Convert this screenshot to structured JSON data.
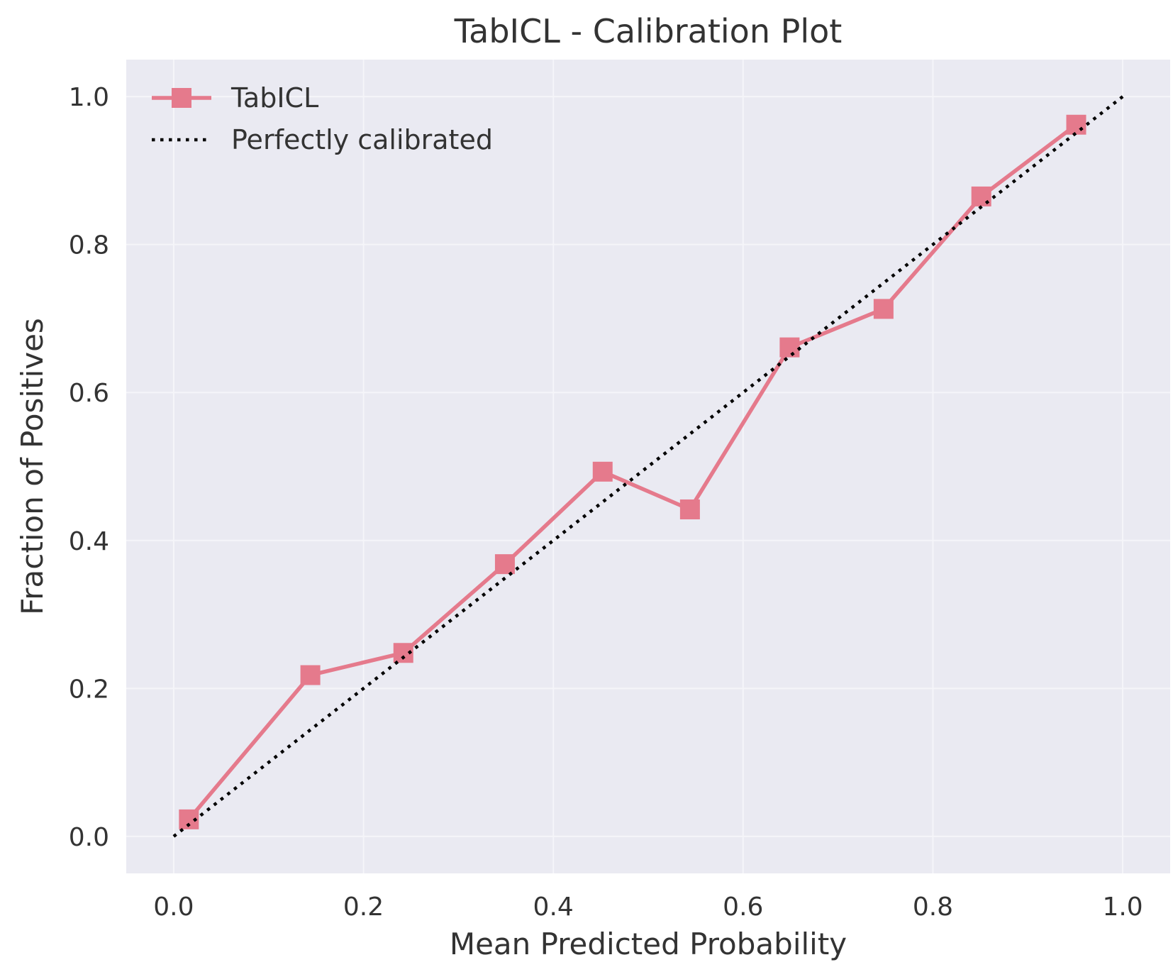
{
  "chart_data": {
    "type": "line",
    "title": "TabICL - Calibration Plot",
    "xlabel": "Mean Predicted Probability",
    "ylabel": "Fraction of Positives",
    "xlim": [
      -0.05,
      1.05
    ],
    "ylim": [
      -0.05,
      1.05
    ],
    "xticks": [
      0.0,
      0.2,
      0.4,
      0.6,
      0.8,
      1.0
    ],
    "xtick_labels": [
      "0.0",
      "0.2",
      "0.4",
      "0.6",
      "0.8",
      "1.0"
    ],
    "yticks": [
      0.0,
      0.2,
      0.4,
      0.6,
      0.8,
      1.0
    ],
    "ytick_labels": [
      "0.0",
      "0.2",
      "0.4",
      "0.6",
      "0.8",
      "1.0"
    ],
    "grid": true,
    "legend_position": "top-left",
    "series": [
      {
        "name": "TabICL",
        "style": "solid-with-square-markers",
        "color": "#e57a8c",
        "x": [
          0.016,
          0.144,
          0.242,
          0.349,
          0.452,
          0.544,
          0.649,
          0.748,
          0.851,
          0.951
        ],
        "y": [
          0.023,
          0.218,
          0.248,
          0.368,
          0.493,
          0.442,
          0.661,
          0.713,
          0.865,
          0.962
        ]
      },
      {
        "name": "Perfectly calibrated",
        "style": "dotted",
        "color": "#000000",
        "x": [
          0.0,
          1.0
        ],
        "y": [
          0.0,
          1.0
        ]
      }
    ],
    "colors": {
      "plot_background": "#eaeaf2",
      "grid": "#f5f5f9",
      "text": "#333333"
    }
  }
}
